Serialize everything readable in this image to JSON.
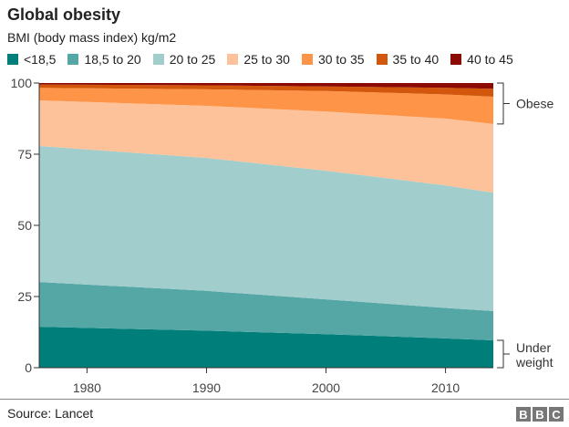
{
  "chart_data": {
    "type": "area",
    "stacked": true,
    "title": "Global obesity",
    "subtitle": "BMI (body mass index) kg/m2",
    "x": [
      1976,
      1990,
      2000,
      2010,
      2014
    ],
    "xlim": [
      1976,
      2014
    ],
    "xticks": [
      1980,
      1990,
      2000,
      2010
    ],
    "ylim": [
      0,
      100
    ],
    "yticks": [
      0,
      25,
      50,
      75,
      100
    ],
    "legend": "top",
    "grid": false,
    "series": [
      {
        "name": "<18,5",
        "color": "#007f7a",
        "values": [
          14.4,
          13.0,
          11.8,
          10.3,
          9.6
        ]
      },
      {
        "name": "18,5 to 20",
        "color": "#55a7a6",
        "values": [
          15.7,
          14.0,
          12.2,
          10.7,
          10.3
        ]
      },
      {
        "name": "20 to 25",
        "color": "#a1cdcc",
        "values": [
          47.8,
          46.7,
          45.2,
          43.0,
          41.6
        ]
      },
      {
        "name": "25 to 30",
        "color": "#fec29b",
        "values": [
          16.0,
          18.3,
          20.8,
          23.5,
          24.1
        ]
      },
      {
        "name": "30 to 35",
        "color": "#fd9447",
        "values": [
          4.4,
          5.8,
          7.2,
          8.5,
          9.6
        ]
      },
      {
        "name": "35 to 40",
        "color": "#d2570c",
        "values": [
          1.2,
          1.4,
          1.6,
          2.3,
          2.8
        ]
      },
      {
        "name": "40 to 45",
        "color": "#8b0a04",
        "values": [
          0.5,
          0.8,
          1.2,
          1.7,
          2.0
        ]
      }
    ],
    "annotations": {
      "obese": "Obese",
      "underweight_1": "Under",
      "underweight_2": "weight"
    }
  },
  "footer": {
    "source": "Source: Lancet",
    "logo": [
      "B",
      "B",
      "C"
    ]
  }
}
